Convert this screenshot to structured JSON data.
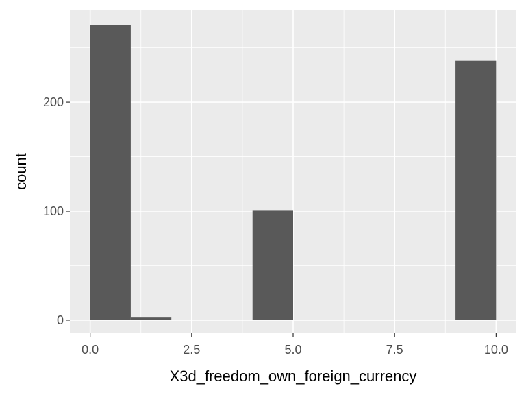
{
  "chart_data": {
    "type": "bar",
    "subtype": "histogram",
    "title": "",
    "xlabel": "X3d_freedom_own_foreign_currency",
    "ylabel": "count",
    "xlim": [
      -0.5,
      10.5
    ],
    "ylim": [
      -12,
      285
    ],
    "x_ticks": [
      0,
      2.5,
      5,
      7.5,
      10
    ],
    "x_tick_labels": [
      "0.0",
      "2.5",
      "5.0",
      "7.5",
      "10.0"
    ],
    "y_ticks": [
      0,
      100,
      200
    ],
    "y_tick_labels": [
      "0",
      "100",
      "200"
    ],
    "grid": true,
    "legend": "none",
    "bins": [
      {
        "x0": 0,
        "x1": 1,
        "count": 271
      },
      {
        "x0": 1,
        "x1": 2,
        "count": 3
      },
      {
        "x0": 4,
        "x1": 5,
        "count": 101
      },
      {
        "x0": 9,
        "x1": 10,
        "count": 238
      }
    ],
    "colors": {
      "panel_background": "#ebebeb",
      "grid_major": "#ffffff",
      "bar_fill": "#595959",
      "tick_text": "#4d4d4d",
      "axis_title_text": "#000000"
    }
  }
}
